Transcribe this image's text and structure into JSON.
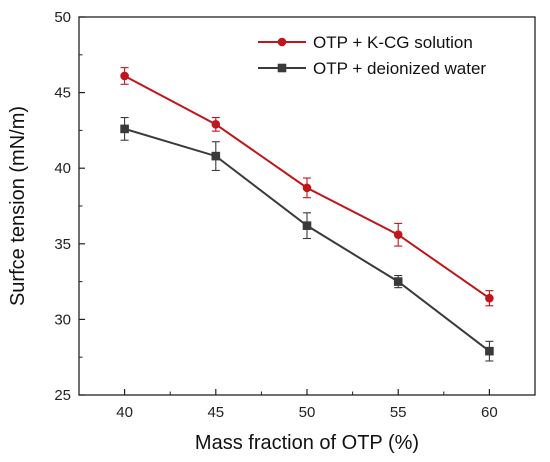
{
  "chart_data": {
    "type": "line",
    "xlabel": "Mass fraction of OTP (%)",
    "ylabel": "Surfce tension (mN/m)",
    "x": [
      40,
      45,
      50,
      55,
      60
    ],
    "xticks": [
      "40",
      "45",
      "50",
      "55",
      "60"
    ],
    "xlim": [
      37.5,
      62.5
    ],
    "ylim": [
      25,
      50
    ],
    "yticks": [
      "25",
      "30",
      "35",
      "40",
      "45",
      "50"
    ],
    "grid": false,
    "legend_position": "top-right",
    "series": [
      {
        "name": "OTP + K-CG solution",
        "color": "#c0151b",
        "marker": "circle",
        "values": [
          46.1,
          42.9,
          38.7,
          35.6,
          31.4
        ],
        "errors": [
          0.55,
          0.45,
          0.65,
          0.75,
          0.5
        ]
      },
      {
        "name": "OTP + deionized water",
        "color": "#3a3a3a",
        "marker": "square",
        "values": [
          42.6,
          40.8,
          36.2,
          32.5,
          27.9
        ],
        "errors": [
          0.75,
          0.95,
          0.85,
          0.4,
          0.65
        ]
      }
    ]
  }
}
